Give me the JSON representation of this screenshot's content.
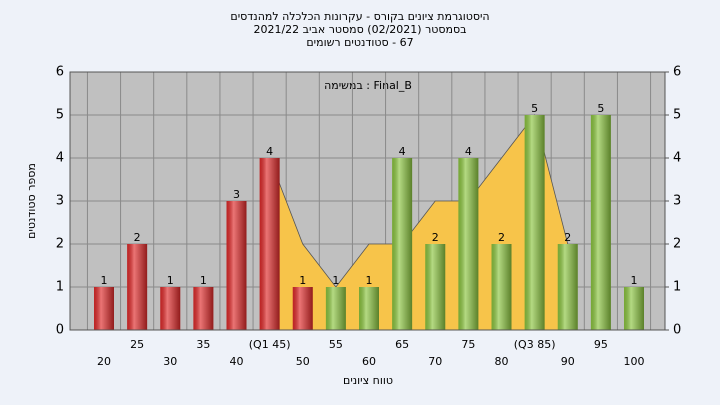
{
  "chart_data": {
    "type": "bar",
    "title": [
      "היסטוגרמת ציונים בקורס - עקרונות הכלכלה למהנדסים",
      "בסמסטר  (02/2021)  סמסטר אביב 2021/22",
      "67 - סטודנטים רשומים"
    ],
    "annotation": "Final_B : במשימה",
    "x_label": "טווח ציונים",
    "y_label": "מספר סטודנטים",
    "categories": [
      "20",
      "25",
      "30",
      "35",
      "40",
      "(Q1 45)",
      "50",
      "55",
      "60",
      "65",
      "70",
      "75",
      "80",
      "(Q3 85)",
      "90",
      "95",
      "100"
    ],
    "values": [
      1,
      2,
      1,
      1,
      3,
      4,
      1,
      1,
      1,
      4,
      2,
      4,
      2,
      5,
      2,
      5,
      1
    ],
    "colors": [
      "#e02a2a",
      "#e02a2a",
      "#e02a2a",
      "#e02a2a",
      "#e02a2a",
      "#e02a2a",
      "#e02a2a",
      "#8cc640",
      "#8cc640",
      "#8cc640",
      "#8cc640",
      "#8cc640",
      "#8cc640",
      "#8cc640",
      "#8cc640",
      "#8cc640",
      "#8cc640"
    ],
    "area": {
      "color": "#f7c44a",
      "values": [
        null,
        null,
        null,
        null,
        null,
        4,
        2,
        1,
        2,
        2,
        3,
        3,
        4,
        5,
        2,
        null,
        null
      ]
    },
    "ylim": [
      0,
      6
    ],
    "yticks": [
      0,
      1,
      2,
      3,
      4,
      5,
      6
    ],
    "y2lim": [
      0,
      6
    ],
    "y2ticks": [
      0,
      1,
      2,
      3,
      4,
      5,
      6
    ],
    "grid": true
  }
}
